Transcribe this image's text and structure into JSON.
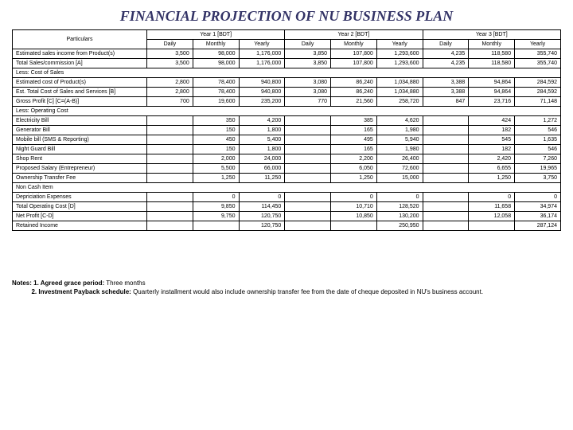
{
  "title": "FINANCIAL PROJECTION OF NU BUSINESS PLAN",
  "columns": {
    "particulars": "Particulars",
    "year1": "Year 1 [BDT]",
    "year2": "Year 2 [BDT]",
    "year3": "Year 3 [BDT]",
    "daily": "Daily",
    "monthly": "Monthly",
    "yearly": "Yearly"
  },
  "rows": [
    {
      "label": "Estimated sales income from Product(s)",
      "y1d": "3,500",
      "y1m": "98,000",
      "y1y": "1,176,000",
      "y2d": "3,850",
      "y2m": "107,800",
      "y2y": "1,293,600",
      "y3d": "4,235",
      "y3m": "118,580",
      "y3y": "355,740"
    },
    {
      "label": "Total Sales/commission [A]",
      "y1d": "3,500",
      "y1m": "98,000",
      "y1y": "1,176,000",
      "y2d": "3,850",
      "y2m": "107,800",
      "y2y": "1,293,600",
      "y3d": "4,235",
      "y3m": "118,580",
      "y3y": "355,740"
    },
    {
      "label": "Less: Cost of Sales",
      "section": true
    },
    {
      "label": "Estimated cost of Product(s)",
      "y1d": "2,800",
      "y1m": "78,400",
      "y1y": "940,800",
      "y2d": "3,080",
      "y2m": "86,240",
      "y2y": "1,034,880",
      "y3d": "3,388",
      "y3m": "94,864",
      "y3y": "284,592"
    },
    {
      "label": "Est. Total Cost of Sales and Services [B]",
      "y1d": "2,800",
      "y1m": "78,400",
      "y1y": "940,800",
      "y2d": "3,080",
      "y2m": "86,240",
      "y2y": "1,034,880",
      "y3d": "3,388",
      "y3m": "94,864",
      "y3y": "284,592"
    },
    {
      "label": "Gross Profit [C] [C=(A-B)]",
      "y1d": "700",
      "y1m": "19,600",
      "y1y": "235,200",
      "y2d": "770",
      "y2m": "21,560",
      "y2y": "258,720",
      "y3d": "847",
      "y3m": "23,716",
      "y3y": "71,148"
    },
    {
      "label": "Less: Operating Cost",
      "section": true
    },
    {
      "label": "Electricity Bill",
      "y1d": "",
      "y1m": "350",
      "y1y": "4,200",
      "y2d": "",
      "y2m": "385",
      "y2y": "4,620",
      "y3d": "",
      "y3m": "424",
      "y3y": "1,272"
    },
    {
      "label": "Generator Bill",
      "y1d": "",
      "y1m": "150",
      "y1y": "1,800",
      "y2d": "",
      "y2m": "165",
      "y2y": "1,980",
      "y3d": "",
      "y3m": "182",
      "y3y": "546"
    },
    {
      "label": "Mobile bill (SMS & Reporting)",
      "y1d": "",
      "y1m": "450",
      "y1y": "5,400",
      "y2d": "",
      "y2m": "495",
      "y2y": "5,940",
      "y3d": "",
      "y3m": "545",
      "y3y": "1,635"
    },
    {
      "label": "Night Guard Bill",
      "y1d": "",
      "y1m": "150",
      "y1y": "1,800",
      "y2d": "",
      "y2m": "165",
      "y2y": "1,980",
      "y3d": "",
      "y3m": "182",
      "y3y": "546"
    },
    {
      "label": "Shop Rent",
      "y1d": "",
      "y1m": "2,000",
      "y1y": "24,000",
      "y2d": "",
      "y2m": "2,200",
      "y2y": "26,400",
      "y3d": "",
      "y3m": "2,420",
      "y3y": "7,260"
    },
    {
      "label": "Proposed Salary (Entrepreneur)",
      "y1d": "",
      "y1m": "5,500",
      "y1y": "66,000",
      "y2d": "",
      "y2m": "6,050",
      "y2y": "72,600",
      "y3d": "",
      "y3m": "6,655",
      "y3y": "19,965"
    },
    {
      "label": "Ownership Transfer Fee",
      "y1d": "",
      "y1m": "1,250",
      "y1y": "11,250",
      "y2d": "",
      "y2m": "1,250",
      "y2y": "15,000",
      "y3d": "",
      "y3m": "1,250",
      "y3y": "3,750"
    },
    {
      "label": "Non Cash Item",
      "section": true
    },
    {
      "label": "Depriciation Expenses",
      "y1d": "",
      "y1m": "0",
      "y1y": "0",
      "y2d": "",
      "y2m": "0",
      "y2y": "0",
      "y3d": "",
      "y3m": "0",
      "y3y": "0"
    },
    {
      "label": "Total Operating Cost [D]",
      "y1d": "",
      "y1m": "9,850",
      "y1y": "114,450",
      "y2d": "",
      "y2m": "10,710",
      "y2y": "128,520",
      "y3d": "",
      "y3m": "11,658",
      "y3y": "34,974"
    },
    {
      "label": "Net Profit [C-D]",
      "y1d": "",
      "y1m": "9,750",
      "y1y": "120,750",
      "y2d": "",
      "y2m": "10,850",
      "y2y": "130,200",
      "y3d": "",
      "y3m": "12,058",
      "y3y": "36,174"
    },
    {
      "label": "Retained Income",
      "y1d": "",
      "y1m": "",
      "y1y": "120,750",
      "y2d": "",
      "y2m": "",
      "y2y": "250,950",
      "y3d": "",
      "y3m": "",
      "y3y": "287,124"
    }
  ],
  "notes": {
    "prefix": "Notes:",
    "n1_label": "1. Agreed grace period:",
    "n1_text": " Three months",
    "n2_label": "2. Investment Payback schedule:",
    "n2_text": " Quarterly installment would also include ownership transfer fee from the date of cheque deposited in NU's business account."
  }
}
